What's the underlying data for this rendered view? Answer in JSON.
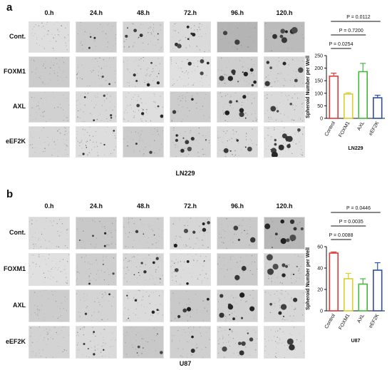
{
  "panels": [
    {
      "letter": "a",
      "timepoints": [
        "0.h",
        "24.h",
        "48.h",
        "72.h",
        "96.h",
        "120.h"
      ],
      "rows": [
        "Cont.",
        "FOXM1",
        "AXL",
        "eEF2K"
      ],
      "cell_line": "LN229",
      "chart_data": {
        "type": "bar",
        "categories": [
          "Control",
          "FOXM1",
          "AXL",
          "eEF2K"
        ],
        "values": [
          168,
          97,
          186,
          82
        ],
        "errors": [
          12,
          5,
          33,
          10
        ],
        "ylabel": "Spheroid Number per Well",
        "xlabel": "LN229",
        "ylim": [
          0,
          250
        ],
        "yticks": [
          0,
          50,
          100,
          150,
          200,
          250
        ],
        "colors": [
          "#e53935",
          "#d9cf2a",
          "#43b83a",
          "#2f4fa6"
        ],
        "comparisons": [
          {
            "label": "P = 0.0254",
            "from": 0,
            "to": 1
          },
          {
            "label": "P = 0.7200",
            "from": 0,
            "to": 2
          },
          {
            "label": "P = 0.0112",
            "from": 0,
            "to": 3
          }
        ]
      }
    },
    {
      "letter": "b",
      "timepoints": [
        "0.h",
        "24.h",
        "48.h",
        "72.h",
        "96.h",
        "120.h"
      ],
      "rows": [
        "Cont.",
        "FOXM1",
        "AXL",
        "eEF2K"
      ],
      "cell_line": "U87",
      "chart_data": {
        "type": "bar",
        "categories": [
          "Control",
          "FOXM1",
          "AXL",
          "eEF2K"
        ],
        "values": [
          54,
          30,
          25,
          38
        ],
        "errors": [
          1,
          5,
          5,
          7
        ],
        "ylabel": "Spheroid Number per Well",
        "xlabel": "U87",
        "ylim": [
          0,
          60
        ],
        "yticks": [
          0,
          20,
          40,
          60
        ],
        "colors": [
          "#e53935",
          "#d9cf2a",
          "#43b83a",
          "#2f4fa6"
        ],
        "comparisons": [
          {
            "label": "P = 0.0088",
            "from": 0,
            "to": 1
          },
          {
            "label": "P = 0.0035",
            "from": 0,
            "to": 2
          },
          {
            "label": "P = 0.0446",
            "from": 0,
            "to": 3
          }
        ]
      }
    }
  ]
}
